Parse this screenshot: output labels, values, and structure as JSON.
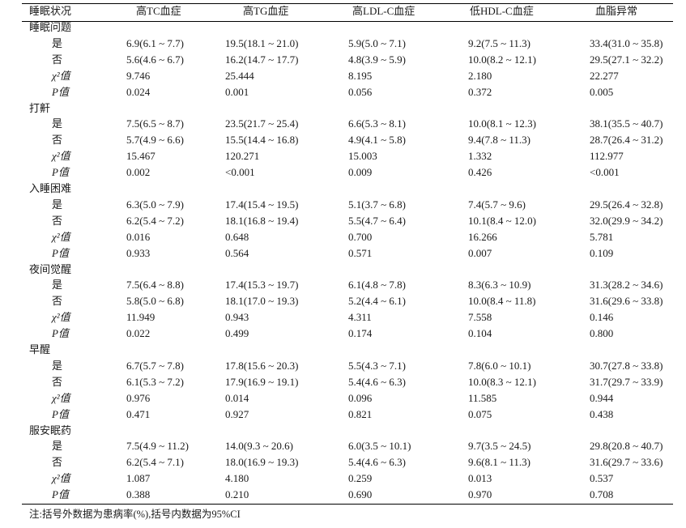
{
  "header": {
    "col0": "睡眠状况",
    "col1": "高TC血症",
    "col2": "高TG血症",
    "col3": "高LDL-C血症",
    "col4": "低HDL-C血症",
    "col5": "血脂异常"
  },
  "groups": [
    {
      "title": "睡眠问题",
      "rows": [
        {
          "label": "是",
          "v": [
            "6.9(6.1 ~ 7.7)",
            "19.5(18.1 ~ 21.0)",
            "5.9(5.0 ~ 7.1)",
            "9.2(7.5 ~ 11.3)",
            "33.4(31.0 ~ 35.8)"
          ]
        },
        {
          "label": "否",
          "v": [
            "5.6(4.6 ~ 6.7)",
            "16.2(14.7 ~ 17.7)",
            "4.8(3.9 ~ 5.9)",
            "10.0(8.2 ~ 12.1)",
            "29.5(27.1 ~ 32.2)"
          ]
        },
        {
          "label": "χ²值",
          "v": [
            "9.746",
            "25.444",
            "8.195",
            "2.180",
            "22.277"
          ]
        },
        {
          "label": "P值",
          "v": [
            "0.024",
            "0.001",
            "0.056",
            "0.372",
            "0.005"
          ]
        }
      ]
    },
    {
      "title": "打鼾",
      "rows": [
        {
          "label": "是",
          "v": [
            "7.5(6.5 ~ 8.7)",
            "23.5(21.7 ~ 25.4)",
            "6.6(5.3 ~ 8.1)",
            "10.0(8.1 ~ 12.3)",
            "38.1(35.5 ~ 40.7)"
          ]
        },
        {
          "label": "否",
          "v": [
            "5.7(4.9 ~ 6.6)",
            "15.5(14.4 ~ 16.8)",
            "4.9(4.1 ~ 5.8)",
            "9.4(7.8 ~ 11.3)",
            "28.7(26.4 ~ 31.2)"
          ]
        },
        {
          "label": "χ²值",
          "v": [
            "15.467",
            "120.271",
            "15.003",
            "1.332",
            "112.977"
          ]
        },
        {
          "label": "P值",
          "v": [
            "0.002",
            "<0.001",
            "0.009",
            "0.426",
            "<0.001"
          ]
        }
      ]
    },
    {
      "title": "入睡困难",
      "rows": [
        {
          "label": "是",
          "v": [
            "6.3(5.0 ~ 7.9)",
            "17.4(15.4 ~ 19.5)",
            "5.1(3.7 ~ 6.8)",
            "7.4(5.7 ~ 9.6)",
            "29.5(26.4 ~ 32.8)"
          ]
        },
        {
          "label": "否",
          "v": [
            "6.2(5.4 ~ 7.2)",
            "18.1(16.8 ~ 19.4)",
            "5.5(4.7 ~ 6.4)",
            "10.1(8.4 ~ 12.0)",
            "32.0(29.9 ~ 34.2)"
          ]
        },
        {
          "label": "χ²值",
          "v": [
            "0.016",
            "0.648",
            "0.700",
            "16.266",
            "5.781"
          ]
        },
        {
          "label": "P值",
          "v": [
            "0.933",
            "0.564",
            "0.571",
            "0.007",
            "0.109"
          ]
        }
      ]
    },
    {
      "title": "夜间觉醒",
      "rows": [
        {
          "label": "是",
          "v": [
            "7.5(6.4 ~ 8.8)",
            "17.4(15.3 ~ 19.7)",
            "6.1(4.8 ~ 7.8)",
            "8.3(6.3 ~ 10.9)",
            "31.3(28.2 ~ 34.6)"
          ]
        },
        {
          "label": "否",
          "v": [
            "5.8(5.0 ~ 6.8)",
            "18.1(17.0 ~ 19.3)",
            "5.2(4.4 ~ 6.1)",
            "10.0(8.4 ~ 11.8)",
            "31.6(29.6 ~ 33.8)"
          ]
        },
        {
          "label": "χ²值",
          "v": [
            "11.949",
            "0.943",
            "4.311",
            "7.558",
            "0.146"
          ]
        },
        {
          "label": "P值",
          "v": [
            "0.022",
            "0.499",
            "0.174",
            "0.104",
            "0.800"
          ]
        }
      ]
    },
    {
      "title": "早醒",
      "rows": [
        {
          "label": "是",
          "v": [
            "6.7(5.7 ~ 7.8)",
            "17.8(15.6 ~ 20.3)",
            "5.5(4.3 ~ 7.1)",
            "7.8(6.0 ~ 10.1)",
            "30.7(27.8 ~ 33.8)"
          ]
        },
        {
          "label": "否",
          "v": [
            "6.1(5.3 ~ 7.2)",
            "17.9(16.9 ~ 19.1)",
            "5.4(4.6 ~ 6.3)",
            "10.0(8.3 ~ 12.1)",
            "31.7(29.7 ~ 33.9)"
          ]
        },
        {
          "label": "χ²值",
          "v": [
            "0.976",
            "0.014",
            "0.096",
            "11.585",
            "0.944"
          ]
        },
        {
          "label": "P值",
          "v": [
            "0.471",
            "0.927",
            "0.821",
            "0.075",
            "0.438"
          ]
        }
      ]
    },
    {
      "title": "服安眠药",
      "rows": [
        {
          "label": "是",
          "v": [
            "7.5(4.9 ~ 11.2)",
            "14.0(9.3 ~ 20.6)",
            "6.0(3.5 ~ 10.1)",
            "9.7(3.5 ~ 24.5)",
            "29.8(20.8 ~ 40.7)"
          ]
        },
        {
          "label": "否",
          "v": [
            "6.2(5.4 ~ 7.1)",
            "18.0(16.9 ~ 19.3)",
            "5.4(4.6 ~ 6.3)",
            "9.6(8.1 ~ 11.3)",
            "31.6(29.7 ~ 33.6)"
          ]
        },
        {
          "label": "χ²值",
          "v": [
            "1.087",
            "4.180",
            "0.259",
            "0.013",
            "0.537"
          ]
        },
        {
          "label": "P值",
          "v": [
            "0.388",
            "0.210",
            "0.690",
            "0.970",
            "0.708"
          ]
        }
      ]
    }
  ],
  "footnote": "注:括号外数据为患病率(%),括号内数据为95%CI"
}
